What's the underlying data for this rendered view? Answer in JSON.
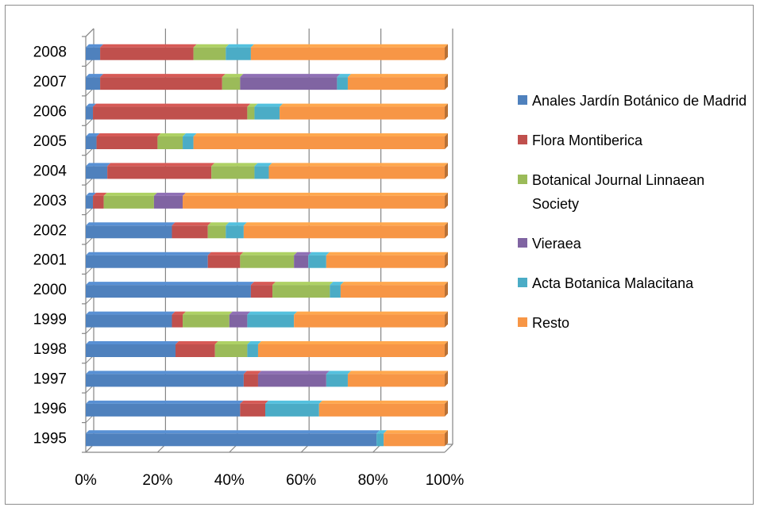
{
  "chart_data": {
    "type": "bar",
    "orientation": "horizontal",
    "stacked": "percent",
    "title": "",
    "xlabel": "",
    "ylabel": "",
    "xlim": [
      0,
      100
    ],
    "x_ticks": [
      "0%",
      "20%",
      "40%",
      "60%",
      "80%",
      "100%"
    ],
    "grid": true,
    "legend_position": "right",
    "categories": [
      "2008",
      "2007",
      "2006",
      "2005",
      "2004",
      "2003",
      "2002",
      "2001",
      "2000",
      "1999",
      "1998",
      "1997",
      "1996",
      "1995"
    ],
    "series": [
      {
        "name": "Anales Jardín Botánico de Madrid",
        "color": "#4f81bd",
        "values": [
          4,
          4,
          2,
          3,
          6,
          2,
          24,
          34,
          46,
          24,
          25,
          44,
          43,
          81
        ]
      },
      {
        "name": "Flora Montiberica",
        "color": "#c0504d",
        "values": [
          26,
          34,
          43,
          17,
          29,
          3,
          10,
          9,
          6,
          3,
          11,
          4,
          7,
          0
        ]
      },
      {
        "name": "Botanical Journal Linnaean Society",
        "color": "#9bbb59",
        "values": [
          9,
          5,
          2,
          7,
          12,
          14,
          5,
          15,
          16,
          13,
          9,
          0,
          0,
          0
        ]
      },
      {
        "name": "Vieraea",
        "color": "#8064a2",
        "values": [
          0,
          27,
          0,
          0,
          0,
          8,
          0,
          4,
          0,
          5,
          0,
          19,
          0,
          0
        ]
      },
      {
        "name": "Acta Botanica Malacitana",
        "color": "#4bacc6",
        "values": [
          7,
          3,
          7,
          3,
          4,
          0,
          5,
          5,
          3,
          13,
          3,
          6,
          15,
          2
        ]
      },
      {
        "name": "Resto",
        "color": "#f79646",
        "values": [
          54,
          27,
          46,
          70,
          49,
          73,
          56,
          33,
          29,
          42,
          52,
          27,
          35,
          17
        ]
      }
    ]
  }
}
